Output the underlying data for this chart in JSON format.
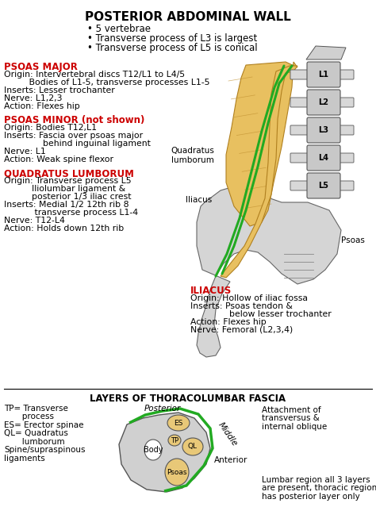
{
  "title": "POSTERIOR ABDOMINAL WALL",
  "title_bullets": [
    "5 vertebrae",
    "Transverse process of L3 is largest",
    "Transverse process of L5 is conical"
  ],
  "sections": [
    {
      "heading": "PSOAS MAJOR",
      "heading_color": "#cc0000",
      "lines": [
        "Origin: Intervertebral discs T12/L1 to L4/5",
        "         Bodies of L1-5, transverse processes L1-5",
        "Inserts: Lesser trochanter",
        "Nerve: L1,2,3",
        "Action: Flexes hip"
      ]
    },
    {
      "heading": "PSOAS MINOR (not shown)",
      "heading_color": "#cc0000",
      "lines": [
        "Origin: Bodies T12,L1",
        "Inserts: Fascia over psoas major",
        "              behind inguinal ligament",
        "Nerve: L1",
        "Action: Weak spine flexor"
      ]
    },
    {
      "heading": "QUADRATUS LUMBORUM",
      "heading_color": "#cc0000",
      "lines": [
        "Origin: Transverse process L5",
        "          Iliolumbar ligament &",
        "          posterior 1/3 iliac crest",
        "Inserts: Medial 1/2 12th rib 8",
        "           transverse process L1-4",
        "Nerve: T12-L4",
        "Action: Holds down 12th rib"
      ]
    }
  ],
  "right_section": {
    "heading": "ILIACUS",
    "heading_color": "#cc0000",
    "lines": [
      "Origin: Hollow of iliac fossa",
      "Inserts: Psoas tendon &",
      "              below lesser trochanter",
      "Action: Flexes hip",
      "Nerve: Femoral (L2,3,4)"
    ]
  },
  "bottom_title": "LAYERS OF THORACOLUMBAR FASCIA",
  "bottom_left": [
    "TP= Transverse",
    "       process",
    "ES= Erector spinae",
    "QL= Quadratus",
    "       lumborum",
    "Spine/supraspinous",
    "ligaments"
  ],
  "bottom_right": [
    "Attachment of",
    "transversus &",
    "internal oblique"
  ],
  "bottom_right2": [
    "Lumbar region all 3 layers",
    "are present, thoracic region",
    "has posterior layer only"
  ],
  "bg_color": "#ffffff",
  "vert_labels": [
    "L1",
    "L2",
    "L3",
    "L4",
    "L5"
  ],
  "diagram_labels": {
    "quadratus_lumborum": "Quadratus\nlumborum",
    "iliacus": "Iliacus",
    "psoas": "Psoas"
  },
  "fascia_labels": {
    "body": "Body",
    "psoas": "Psoas",
    "ql": "QL",
    "tp": "TP",
    "es": "ES",
    "anterior": "Anterior",
    "middle": "Middle",
    "posterior": "Posterior"
  }
}
